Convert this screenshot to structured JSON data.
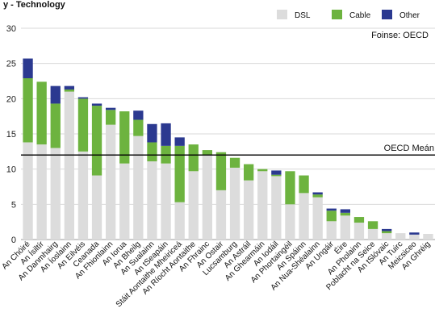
{
  "chart_data": {
    "type": "bar",
    "stacked": true,
    "title": "y - Technology",
    "source": "Foinse: OECD",
    "ylim": [
      0,
      30
    ],
    "yticks": [
      0,
      5,
      10,
      15,
      20,
      25,
      30
    ],
    "grid": true,
    "legend_placement": "top-right",
    "reference_line": {
      "label": "OECD Meán",
      "value": 12.0
    },
    "categories": [
      "An Chóiré",
      "An Ísiltír",
      "An Danmhairg",
      "An Íoslainn",
      "An Eilvéis",
      "Ceanada",
      "An Fhionlainn",
      "An Iorua",
      "An Bheilg",
      "An Sualainn",
      "An tSeapáin",
      "Stáit Aontaithe Mheiriceá",
      "An Ríocht Aontaithe",
      "An Fhrainc",
      "An Ostair",
      "Lucsamburg",
      "An Astráil",
      "An Ghearmáin",
      "An Iodáil",
      "An Phortaingéil",
      "An Spáinn",
      "An Nua-Shéalainn",
      "An Ungáir",
      "Éire",
      "An Pholainn",
      "Poblacht na Seice",
      "An tSlóvaic",
      "An Tuirc",
      "Meicsiceo",
      "An Ghréig"
    ],
    "series": [
      {
        "name": "DSL",
        "color": "#dcdcdc",
        "values": [
          13.8,
          13.5,
          13.0,
          21.0,
          12.5,
          9.1,
          16.3,
          10.8,
          14.7,
          11.1,
          10.8,
          5.3,
          9.7,
          12.0,
          7.0,
          10.2,
          8.4,
          9.7,
          9.0,
          5.0,
          6.6,
          6.0,
          2.6,
          3.4,
          2.4,
          1.5,
          0.9,
          0.9,
          0.7,
          0.8
        ]
      },
      {
        "name": "Cable",
        "color": "#6db33f",
        "values": [
          9.1,
          8.9,
          6.3,
          0.3,
          7.5,
          9.9,
          2.1,
          7.4,
          2.3,
          2.7,
          2.5,
          8.0,
          3.8,
          0.7,
          5.4,
          1.4,
          2.3,
          0.3,
          0.2,
          4.7,
          2.5,
          0.4,
          1.5,
          0.4,
          0.8,
          1.1,
          0.3,
          0.0,
          0.0,
          0.0
        ]
      },
      {
        "name": "Other",
        "color": "#2b3990",
        "values": [
          2.8,
          0.0,
          2.5,
          0.5,
          0.2,
          0.3,
          0.3,
          0.0,
          1.3,
          2.6,
          3.2,
          1.2,
          0.0,
          0.0,
          0.0,
          0.0,
          0.0,
          0.0,
          0.6,
          0.0,
          0.0,
          0.3,
          0.3,
          0.5,
          0.0,
          0.0,
          0.3,
          0.0,
          0.3,
          0.0
        ]
      }
    ]
  }
}
